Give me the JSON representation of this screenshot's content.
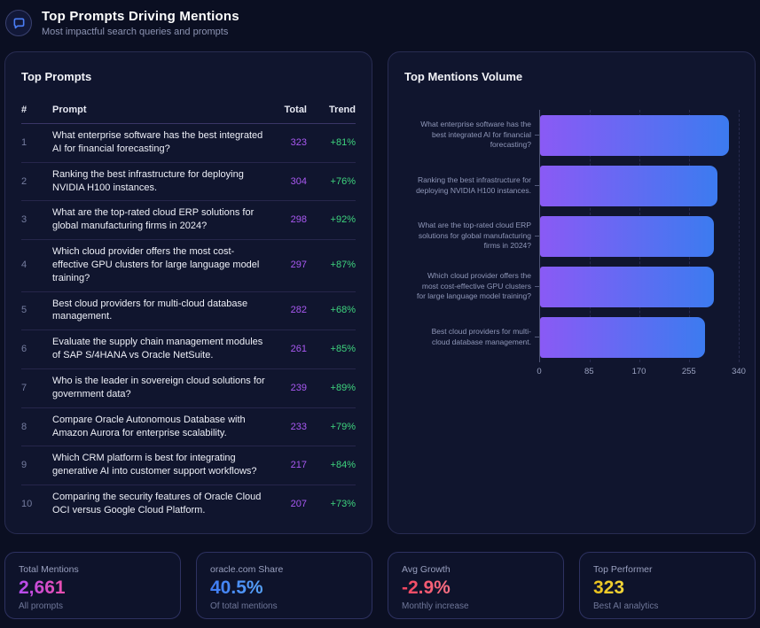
{
  "header": {
    "title": "Top Prompts Driving Mentions",
    "subtitle": "Most impactful search queries and prompts",
    "icon": "chat-bubble-icon",
    "icon_color": "#4a7df5"
  },
  "prompts_panel": {
    "title": "Top Prompts",
    "columns": {
      "rank": "#",
      "prompt": "Prompt",
      "total": "Total",
      "trend": "Trend"
    },
    "rows": [
      {
        "rank": "1",
        "prompt": "What enterprise software has the best integrated AI for financial forecasting?",
        "total": "323",
        "trend": "+81%"
      },
      {
        "rank": "2",
        "prompt": "Ranking the best infrastructure for deploying NVIDIA H100 instances.",
        "total": "304",
        "trend": "+76%"
      },
      {
        "rank": "3",
        "prompt": "What are the top-rated cloud ERP solutions for global manufacturing firms in 2024?",
        "total": "298",
        "trend": "+92%"
      },
      {
        "rank": "4",
        "prompt": "Which cloud provider offers the most cost-effective GPU clusters for large language model training?",
        "total": "297",
        "trend": "+87%"
      },
      {
        "rank": "5",
        "prompt": "Best cloud providers for multi-cloud database management.",
        "total": "282",
        "trend": "+68%"
      },
      {
        "rank": "6",
        "prompt": "Evaluate the supply chain management modules of SAP S/4HANA vs Oracle NetSuite.",
        "total": "261",
        "trend": "+85%"
      },
      {
        "rank": "7",
        "prompt": "Who is the leader in sovereign cloud solutions for government data?",
        "total": "239",
        "trend": "+89%"
      },
      {
        "rank": "8",
        "prompt": "Compare Oracle Autonomous Database with Amazon Aurora for enterprise scalability.",
        "total": "233",
        "trend": "+79%"
      },
      {
        "rank": "9",
        "prompt": "Which CRM platform is best for integrating generative AI into customer support workflows?",
        "total": "217",
        "trend": "+84%"
      },
      {
        "rank": "10",
        "prompt": "Comparing the security features of Oracle Cloud OCI versus Google Cloud Platform.",
        "total": "207",
        "trend": "+73%"
      }
    ]
  },
  "chart_panel": {
    "title": "Top Mentions Volume"
  },
  "chart_data": {
    "type": "bar",
    "orientation": "horizontal",
    "title": "Top Mentions Volume",
    "categories": [
      "What enterprise software has the best integrated AI for financial forecasting?",
      "Ranking the best infrastructure for deploying NVIDIA H100 instances.",
      "What are the top-rated cloud ERP solutions for global manufacturing firms in 2024?",
      "Which cloud provider offers the most cost-effective GPU clusters for large language model training?",
      "Best cloud providers for multi-cloud database management."
    ],
    "values": [
      323,
      304,
      298,
      297,
      282
    ],
    "xlim": [
      0,
      340
    ],
    "xticks": [
      0,
      85,
      170,
      255,
      340
    ],
    "grid": "vertical-dashed",
    "legend": "none",
    "bar_gradient": [
      "#8a5af5",
      "#3c7bf0"
    ]
  },
  "stats": [
    {
      "label": "Total Mentions",
      "value": "2,661",
      "sublabel": "All prompts",
      "color_from": "#b44bf0",
      "color_to": "#ee4fae"
    },
    {
      "label": "oracle.com Share",
      "value": "40.5%",
      "sublabel": "Of total mentions",
      "color_from": "#3f7bf5",
      "color_to": "#57a3f8"
    },
    {
      "label": "Avg Growth",
      "value": "-2.9%",
      "sublabel": "Monthly increase",
      "color_from": "#f0435e",
      "color_to": "#fb7185"
    },
    {
      "label": "Top Performer",
      "value": "323",
      "sublabel": "Best AI analytics",
      "color_from": "#e9c01c",
      "color_to": "#f3d63a"
    }
  ]
}
